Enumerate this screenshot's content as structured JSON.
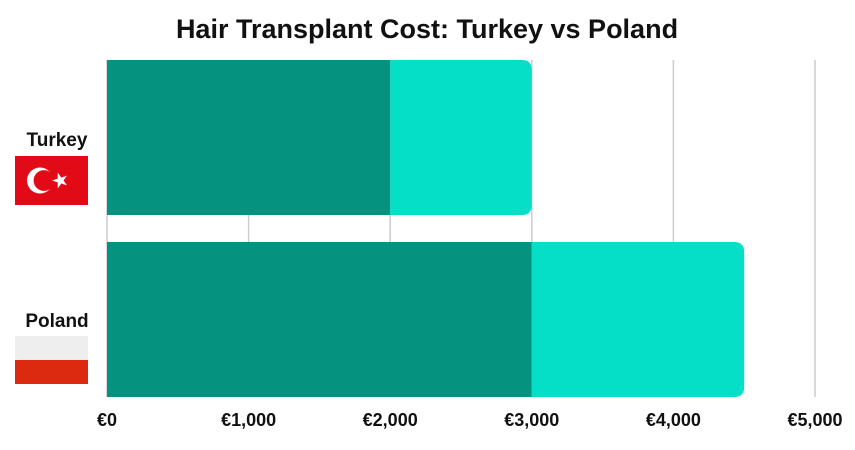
{
  "chart_data": {
    "type": "bar",
    "orientation": "horizontal",
    "stacked": true,
    "title": "Hair Transplant Cost: Turkey vs Poland",
    "categories": [
      "Turkey",
      "Poland"
    ],
    "series": [
      {
        "values": [
          2000,
          3000
        ],
        "color": "#05937f"
      },
      {
        "values": [
          1000,
          1500
        ],
        "color": "#06dfc7"
      }
    ],
    "xlim": [
      0,
      5000
    ],
    "xticks": [
      0,
      1000,
      2000,
      3000,
      4000,
      5000
    ],
    "xtick_labels": [
      "€0",
      "€1,000",
      "€2,000",
      "€3,000",
      "€4,000",
      "€5,000"
    ],
    "grid": true,
    "legend": "none",
    "flags": [
      "turkey-flag",
      "poland-flag"
    ]
  }
}
